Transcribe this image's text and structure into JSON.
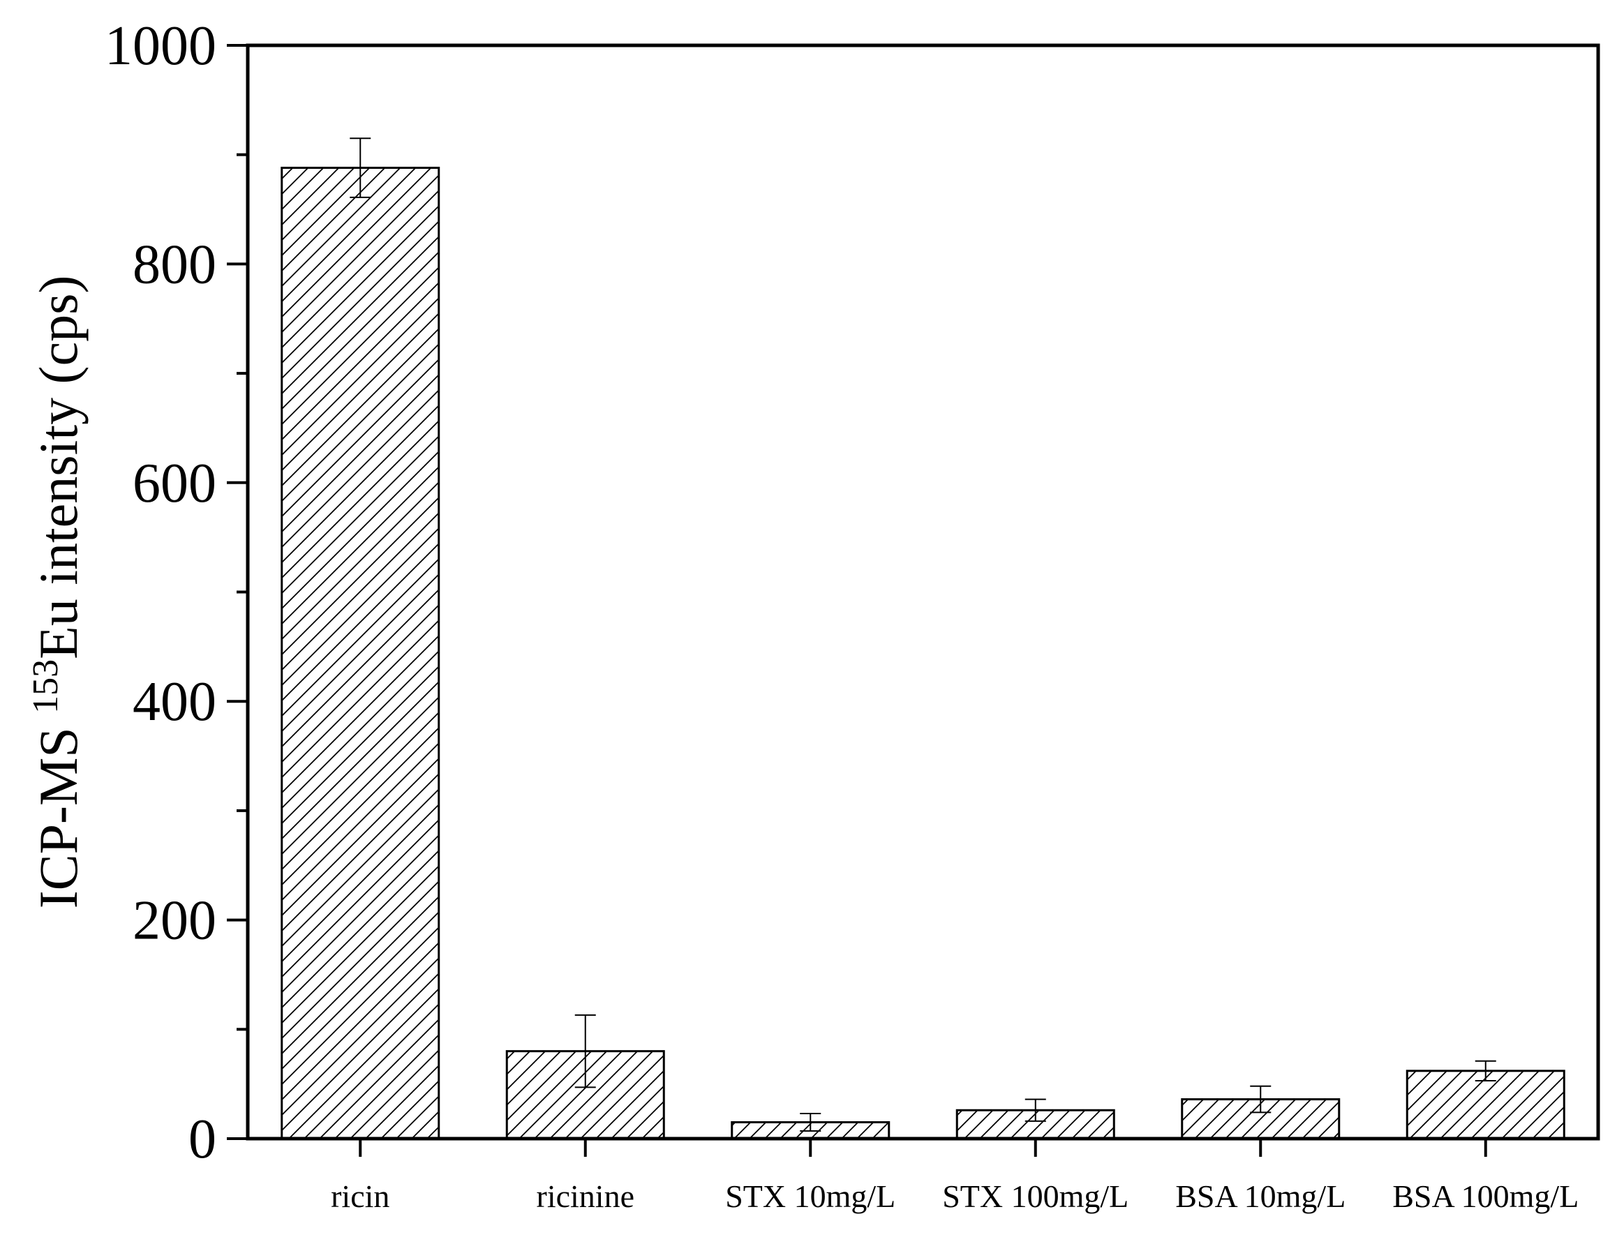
{
  "chart_data": {
    "type": "bar",
    "title": "",
    "xlabel": "",
    "ylabel": {
      "prefix": "ICP-MS ",
      "superscript": "153",
      "suffix": "Eu intensity (cps)"
    },
    "ylim": [
      0,
      1000
    ],
    "yticks": [
      0,
      200,
      400,
      600,
      800,
      1000
    ],
    "yminor_step": 100,
    "categories": [
      "ricin",
      "ricinine",
      "STX 10mg/L",
      "STX 100mg/L",
      "BSA 10mg/L",
      "BSA 100mg/L"
    ],
    "values": [
      888,
      80,
      15,
      26,
      36,
      62
    ],
    "errors": [
      27,
      33,
      8,
      10,
      12,
      9
    ],
    "grid": false,
    "legend": "none",
    "fill": "diagonal-hatch",
    "colors": {
      "bar_stroke": "#000000",
      "hatch": "#000000",
      "axis": "#000000",
      "background": "#ffffff"
    }
  }
}
